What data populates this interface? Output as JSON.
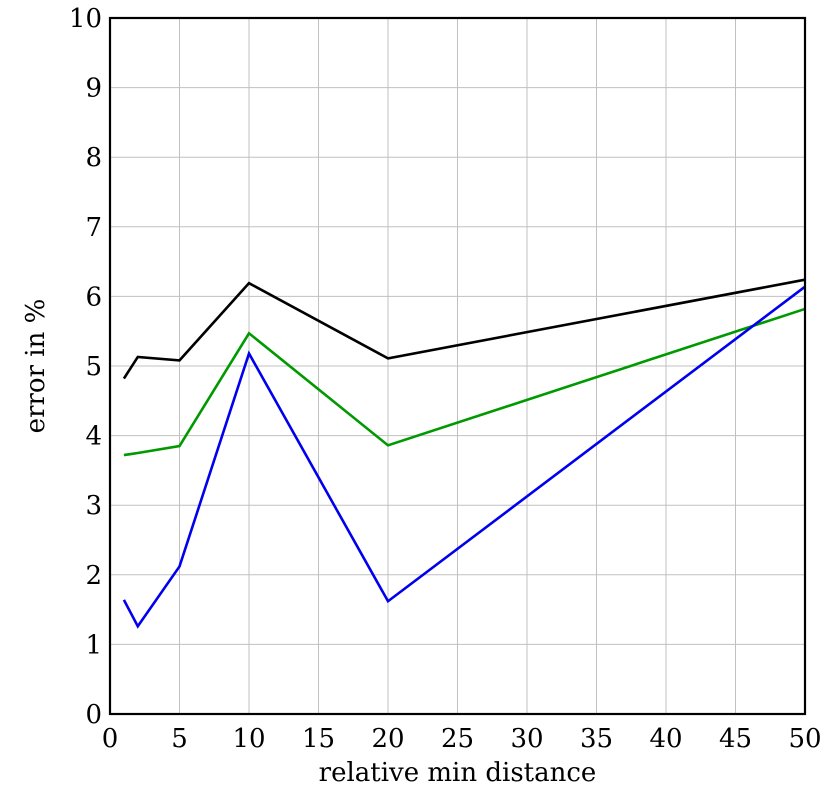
{
  "chart_data": {
    "type": "line",
    "title": "",
    "xlabel": "relative min distance",
    "ylabel": "error in %",
    "xlim": [
      0,
      50
    ],
    "ylim": [
      0,
      10
    ],
    "xticks": [
      0,
      5,
      10,
      15,
      20,
      25,
      30,
      35,
      40,
      45,
      50
    ],
    "yticks": [
      0,
      1,
      2,
      3,
      4,
      5,
      6,
      7,
      8,
      9,
      10
    ],
    "grid": true,
    "legend": "none",
    "series": [
      {
        "color": "#000000",
        "x": [
          1,
          2,
          5,
          10,
          20,
          50
        ],
        "y": [
          4.82,
          5.13,
          5.08,
          6.19,
          5.11,
          6.24
        ]
      },
      {
        "color": "#009900",
        "x": [
          1,
          2,
          5,
          10,
          20,
          50
        ],
        "y": [
          3.72,
          3.75,
          3.85,
          5.47,
          3.86,
          5.82
        ]
      },
      {
        "color": "#0000ee",
        "x": [
          1,
          2,
          5,
          10,
          20,
          50
        ],
        "y": [
          1.64,
          1.26,
          2.12,
          5.18,
          1.62,
          6.14
        ]
      }
    ]
  }
}
